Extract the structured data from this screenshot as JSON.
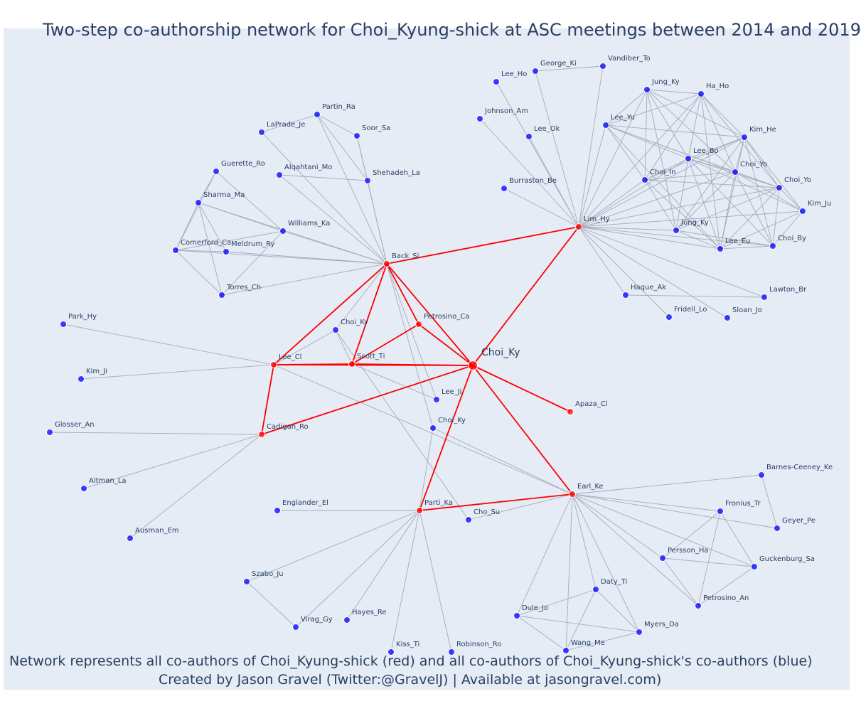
{
  "title": "Two-step co-authorship network for Choi_Kyung-shick at ASC meetings between 2014 and 2019",
  "caption_line1": "Network represents all co-authors of Choi_Kyung-shick (red) and all co-authors of Choi_Kyung-shick's co-authors (blue)",
  "caption_line2": "Created by Jason Gravel (Twitter:@GravelJ) | Available at jasongravel.com)",
  "colors": {
    "plot_background": "#e5ecf6",
    "first_degree": "#ff0000",
    "second_degree": "#0000ff",
    "red_edge": "#ff0000",
    "grey_edge": "#a6abb8",
    "text": "#2a3f5f"
  },
  "nodes": [
    {
      "id": "choi_ky_focal",
      "label": "Choi_Ky",
      "group": "focal"
    },
    {
      "id": "back_si",
      "label": "Back_Si",
      "group": "red"
    },
    {
      "id": "lim_hy",
      "label": "Lim_Hy",
      "group": "red"
    },
    {
      "id": "lee_cl",
      "label": "Lee_Cl",
      "group": "red"
    },
    {
      "id": "scott_ti",
      "label": "Scott_Ti",
      "group": "red"
    },
    {
      "id": "petrosino_ca",
      "label": "Petrosino_Ca",
      "group": "red"
    },
    {
      "id": "cadigan_ro",
      "label": "Cadigan_Ro",
      "group": "red"
    },
    {
      "id": "parti_ka",
      "label": "Parti_Ka",
      "group": "red"
    },
    {
      "id": "earl_ke",
      "label": "Earl_Ke",
      "group": "red"
    },
    {
      "id": "apaza_cl",
      "label": "Apaza_Cl",
      "group": "red"
    },
    {
      "id": "vandiber_to",
      "label": "Vandiber_To",
      "group": "blue"
    },
    {
      "id": "george_ki",
      "label": "George_Ki",
      "group": "blue"
    },
    {
      "id": "lee_ho",
      "label": "Lee_Ho",
      "group": "blue"
    },
    {
      "id": "johnson_am",
      "label": "Johnson_Am",
      "group": "blue"
    },
    {
      "id": "lee_ok",
      "label": "Lee_Ok",
      "group": "blue"
    },
    {
      "id": "burraston_be",
      "label": "Burraston_Be",
      "group": "blue"
    },
    {
      "id": "jung_ky1",
      "label": "Jung_Ky",
      "group": "blue"
    },
    {
      "id": "ha_ho",
      "label": "Ha_Ho",
      "group": "blue"
    },
    {
      "id": "lee_yu",
      "label": "Lee_Yu",
      "group": "blue"
    },
    {
      "id": "kim_he",
      "label": "Kim_He",
      "group": "blue"
    },
    {
      "id": "lee_bo",
      "label": "Lee_Bo",
      "group": "blue"
    },
    {
      "id": "choi_in",
      "label": "Choi_In",
      "group": "blue"
    },
    {
      "id": "choi_yo1",
      "label": "Choi_Yo",
      "group": "blue"
    },
    {
      "id": "choi_yo2",
      "label": "Choi_Yo",
      "group": "blue"
    },
    {
      "id": "kim_ju",
      "label": "Kim_Ju",
      "group": "blue"
    },
    {
      "id": "jung_ky2",
      "label": "Jung_Ky",
      "group": "blue"
    },
    {
      "id": "lee_eu",
      "label": "Lee_Eu",
      "group": "blue"
    },
    {
      "id": "choi_by",
      "label": "Choi_By",
      "group": "blue"
    },
    {
      "id": "haque_ak",
      "label": "Haque_Ak",
      "group": "blue"
    },
    {
      "id": "lawton_br",
      "label": "Lawton_Br",
      "group": "blue"
    },
    {
      "id": "fridell_lo",
      "label": "Fridell_Lo",
      "group": "blue"
    },
    {
      "id": "sloan_jo",
      "label": "Sloan_Jo",
      "group": "blue"
    },
    {
      "id": "partin_ra",
      "label": "Partin_Ra",
      "group": "blue"
    },
    {
      "id": "laprade_je",
      "label": "LaPrade_Je",
      "group": "blue"
    },
    {
      "id": "soor_sa",
      "label": "Soor_Sa",
      "group": "blue"
    },
    {
      "id": "alqahtani_mo",
      "label": "Alqahtani_Mo",
      "group": "blue"
    },
    {
      "id": "shehadeh_la",
      "label": "Shehadeh_La",
      "group": "blue"
    },
    {
      "id": "guerette_ro",
      "label": "Guerette_Ro",
      "group": "blue"
    },
    {
      "id": "sharma_ma",
      "label": "Sharma_Ma",
      "group": "blue"
    },
    {
      "id": "williams_ka",
      "label": "Williams_Ka",
      "group": "blue"
    },
    {
      "id": "comerford_ca",
      "label": "Comerford_Ca",
      "group": "blue"
    },
    {
      "id": "meldrum_ry",
      "label": "Meldrum_Ry",
      "group": "blue"
    },
    {
      "id": "torres_ch",
      "label": "Torres_Ch",
      "group": "blue"
    },
    {
      "id": "park_hy",
      "label": "Park_Hy",
      "group": "blue"
    },
    {
      "id": "kim_ji",
      "label": "Kim_Ji",
      "group": "blue"
    },
    {
      "id": "choi_ky_b1",
      "label": "Choi_Ky",
      "group": "blue"
    },
    {
      "id": "lee_ji",
      "label": "Lee_Ji",
      "group": "blue"
    },
    {
      "id": "choi_ky_b2",
      "label": "Choi_Ky",
      "group": "blue"
    },
    {
      "id": "glosser_an",
      "label": "Glosser_An",
      "group": "blue"
    },
    {
      "id": "altman_la",
      "label": "Altman_La",
      "group": "blue"
    },
    {
      "id": "ausman_em",
      "label": "Ausman_Em",
      "group": "blue"
    },
    {
      "id": "englander_el",
      "label": "Englander_El",
      "group": "blue"
    },
    {
      "id": "cho_su",
      "label": "Cho_Su",
      "group": "blue"
    },
    {
      "id": "szabo_ju",
      "label": "Szabo_Ju",
      "group": "blue"
    },
    {
      "id": "virag_gy",
      "label": "Virag_Gy",
      "group": "blue"
    },
    {
      "id": "hayes_re",
      "label": "Hayes_Re",
      "group": "blue"
    },
    {
      "id": "kiss_ti",
      "label": "Kiss_Ti",
      "group": "blue"
    },
    {
      "id": "robinson_ro",
      "label": "Robinson_Ro",
      "group": "blue"
    },
    {
      "id": "barnes_ceeney_ke",
      "label": "Barnes-Ceeney_Ke",
      "group": "blue"
    },
    {
      "id": "fronius_tr",
      "label": "Fronius_Tr",
      "group": "blue"
    },
    {
      "id": "geyer_pe",
      "label": "Geyer_Pe",
      "group": "blue"
    },
    {
      "id": "persson_ha",
      "label": "Persson_Ha",
      "group": "blue"
    },
    {
      "id": "guckenburg_sa",
      "label": "Guckenburg_Sa",
      "group": "blue"
    },
    {
      "id": "daty_ti",
      "label": "Daty_Ti",
      "group": "blue"
    },
    {
      "id": "petrosino_an",
      "label": "Petrosino_An",
      "group": "blue"
    },
    {
      "id": "dule_jo",
      "label": "Dule_Jo",
      "group": "blue"
    },
    {
      "id": "myers_da",
      "label": "Myers_Da",
      "group": "blue"
    },
    {
      "id": "wang_me",
      "label": "Wang_Me",
      "group": "blue"
    }
  ],
  "red_edges": [
    [
      "choi_ky_focal",
      "back_si"
    ],
    [
      "choi_ky_focal",
      "lim_hy"
    ],
    [
      "choi_ky_focal",
      "scott_ti"
    ],
    [
      "choi_ky_focal",
      "petrosino_ca"
    ],
    [
      "choi_ky_focal",
      "cadigan_ro"
    ],
    [
      "choi_ky_focal",
      "parti_ka"
    ],
    [
      "choi_ky_focal",
      "earl_ke"
    ],
    [
      "choi_ky_focal",
      "apaza_cl"
    ],
    [
      "choi_ky_focal",
      "lee_cl"
    ],
    [
      "back_si",
      "lim_hy"
    ],
    [
      "back_si",
      "lee_cl"
    ],
    [
      "back_si",
      "scott_ti"
    ],
    [
      "back_si",
      "petrosino_ca"
    ],
    [
      "lee_cl",
      "scott_ti"
    ],
    [
      "lee_cl",
      "cadigan_ro"
    ],
    [
      "scott_ti",
      "petrosino_ca"
    ],
    [
      "parti_ka",
      "earl_ke"
    ]
  ],
  "grey_edges": [
    [
      "lim_hy",
      "vandiber_to"
    ],
    [
      "george_ki",
      "vandiber_to"
    ],
    [
      "lim_hy",
      "george_ki"
    ],
    [
      "lim_hy",
      "lee_ho"
    ],
    [
      "lim_hy",
      "johnson_am"
    ],
    [
      "lim_hy",
      "lee_ok"
    ],
    [
      "lim_hy",
      "burraston_be"
    ],
    [
      "lim_hy",
      "jung_ky1"
    ],
    [
      "lim_hy",
      "ha_ho"
    ],
    [
      "lim_hy",
      "lee_yu"
    ],
    [
      "lim_hy",
      "kim_he"
    ],
    [
      "lim_hy",
      "lee_bo"
    ],
    [
      "lim_hy",
      "choi_in"
    ],
    [
      "lim_hy",
      "choi_yo1"
    ],
    [
      "lim_hy",
      "choi_yo2"
    ],
    [
      "lim_hy",
      "kim_ju"
    ],
    [
      "lim_hy",
      "jung_ky2"
    ],
    [
      "lim_hy",
      "lee_eu"
    ],
    [
      "lim_hy",
      "choi_by"
    ],
    [
      "lim_hy",
      "haque_ak"
    ],
    [
      "lim_hy",
      "lawton_br"
    ],
    [
      "lim_hy",
      "fridell_lo"
    ],
    [
      "lim_hy",
      "sloan_jo"
    ],
    [
      "haque_ak",
      "lawton_br"
    ],
    [
      "jung_ky1",
      "ha_ho"
    ],
    [
      "jung_ky1",
      "lee_yu"
    ],
    [
      "jung_ky1",
      "kim_he"
    ],
    [
      "jung_ky1",
      "lee_bo"
    ],
    [
      "jung_ky1",
      "choi_in"
    ],
    [
      "jung_ky1",
      "choi_yo1"
    ],
    [
      "jung_ky1",
      "jung_ky2"
    ],
    [
      "ha_ho",
      "lee_yu"
    ],
    [
      "ha_ho",
      "kim_he"
    ],
    [
      "ha_ho",
      "lee_bo"
    ],
    [
      "ha_ho",
      "choi_in"
    ],
    [
      "ha_ho",
      "choi_yo1"
    ],
    [
      "ha_ho",
      "lee_eu"
    ],
    [
      "ha_ho",
      "choi_yo2"
    ],
    [
      "lee_yu",
      "kim_he"
    ],
    [
      "lee_yu",
      "lee_bo"
    ],
    [
      "lee_yu",
      "choi_yo1"
    ],
    [
      "lee_yu",
      "choi_yo2"
    ],
    [
      "lee_yu",
      "choi_in"
    ],
    [
      "lee_yu",
      "lee_eu"
    ],
    [
      "kim_he",
      "lee_bo"
    ],
    [
      "kim_he",
      "choi_in"
    ],
    [
      "kim_he",
      "choi_yo1"
    ],
    [
      "kim_he",
      "choi_yo2"
    ],
    [
      "kim_he",
      "kim_ju"
    ],
    [
      "kim_he",
      "jung_ky2"
    ],
    [
      "kim_he",
      "lee_eu"
    ],
    [
      "kim_he",
      "choi_by"
    ],
    [
      "lee_bo",
      "choi_in"
    ],
    [
      "lee_bo",
      "choi_yo1"
    ],
    [
      "lee_bo",
      "choi_yo2"
    ],
    [
      "lee_bo",
      "kim_ju"
    ],
    [
      "lee_bo",
      "jung_ky2"
    ],
    [
      "lee_bo",
      "lee_eu"
    ],
    [
      "lee_bo",
      "choi_by"
    ],
    [
      "choi_in",
      "choi_yo1"
    ],
    [
      "choi_in",
      "choi_yo2"
    ],
    [
      "choi_in",
      "jung_ky2"
    ],
    [
      "choi_in",
      "lee_eu"
    ],
    [
      "choi_yo1",
      "choi_yo2"
    ],
    [
      "choi_yo1",
      "kim_ju"
    ],
    [
      "choi_yo1",
      "jung_ky2"
    ],
    [
      "choi_yo1",
      "lee_eu"
    ],
    [
      "choi_yo1",
      "choi_by"
    ],
    [
      "choi_yo2",
      "kim_ju"
    ],
    [
      "choi_yo2",
      "jung_ky2"
    ],
    [
      "choi_yo2",
      "lee_eu"
    ],
    [
      "choi_yo2",
      "choi_by"
    ],
    [
      "kim_ju",
      "lee_eu"
    ],
    [
      "kim_ju",
      "choi_by"
    ],
    [
      "jung_ky2",
      "lee_eu"
    ],
    [
      "jung_ky2",
      "choi_by"
    ],
    [
      "lee_eu",
      "choi_by"
    ],
    [
      "back_si",
      "partin_ra"
    ],
    [
      "back_si",
      "laprade_je"
    ],
    [
      "back_si",
      "soor_sa"
    ],
    [
      "back_si",
      "alqahtani_mo"
    ],
    [
      "back_si",
      "shehadeh_la"
    ],
    [
      "back_si",
      "sharma_ma"
    ],
    [
      "back_si",
      "williams_ka"
    ],
    [
      "back_si",
      "comerford_ca"
    ],
    [
      "back_si",
      "meldrum_ry"
    ],
    [
      "back_si",
      "torres_ch"
    ],
    [
      "back_si",
      "choi_ky_b1"
    ],
    [
      "back_si",
      "choi_ky_b2"
    ],
    [
      "back_si",
      "lee_ji"
    ],
    [
      "partin_ra",
      "laprade_je"
    ],
    [
      "partin_ra",
      "soor_sa"
    ],
    [
      "partin_ra",
      "shehadeh_la"
    ],
    [
      "alqahtani_mo",
      "shehadeh_la"
    ],
    [
      "soor_sa",
      "shehadeh_la"
    ],
    [
      "guerette_ro",
      "sharma_ma"
    ],
    [
      "guerette_ro",
      "williams_ka"
    ],
    [
      "guerette_ro",
      "comerford_ca"
    ],
    [
      "sharma_ma",
      "williams_ka"
    ],
    [
      "sharma_ma",
      "comerford_ca"
    ],
    [
      "sharma_ma",
      "torres_ch"
    ],
    [
      "sharma_ma",
      "meldrum_ry"
    ],
    [
      "williams_ka",
      "comerford_ca"
    ],
    [
      "williams_ka",
      "torres_ch"
    ],
    [
      "comerford_ca",
      "meldrum_ry"
    ],
    [
      "comerford_ca",
      "torres_ch"
    ],
    [
      "lee_cl",
      "park_hy"
    ],
    [
      "lee_cl",
      "kim_ji"
    ],
    [
      "lee_cl",
      "choi_ky_b1"
    ],
    [
      "lee_cl",
      "earl_ke"
    ],
    [
      "scott_ti",
      "choi_ky_b1"
    ],
    [
      "scott_ti",
      "lee_ji"
    ],
    [
      "cadigan_ro",
      "glosser_an"
    ],
    [
      "cadigan_ro",
      "altman_la"
    ],
    [
      "cadigan_ro",
      "ausman_em"
    ],
    [
      "parti_ka",
      "choi_ky_b2"
    ],
    [
      "parti_ka",
      "englander_el"
    ],
    [
      "parti_ka",
      "szabo_ju"
    ],
    [
      "parti_ka",
      "virag_gy"
    ],
    [
      "parti_ka",
      "hayes_re"
    ],
    [
      "parti_ka",
      "kiss_ti"
    ],
    [
      "parti_ka",
      "robinson_ro"
    ],
    [
      "szabo_ju",
      "virag_gy"
    ],
    [
      "earl_ke",
      "choi_ky_b2"
    ],
    [
      "earl_ke",
      "cho_su"
    ],
    [
      "choi_ky_b1",
      "cho_su"
    ],
    [
      "earl_ke",
      "barnes_ceeney_ke"
    ],
    [
      "earl_ke",
      "fronius_tr"
    ],
    [
      "earl_ke",
      "geyer_pe"
    ],
    [
      "earl_ke",
      "persson_ha"
    ],
    [
      "earl_ke",
      "guckenburg_sa"
    ],
    [
      "earl_ke",
      "daty_ti"
    ],
    [
      "earl_ke",
      "petrosino_an"
    ],
    [
      "earl_ke",
      "dule_jo"
    ],
    [
      "earl_ke",
      "myers_da"
    ],
    [
      "earl_ke",
      "wang_me"
    ],
    [
      "barnes_ceeney_ke",
      "geyer_pe"
    ],
    [
      "fronius_tr",
      "persson_ha"
    ],
    [
      "fronius_tr",
      "guckenburg_sa"
    ],
    [
      "fronius_tr",
      "petrosino_an"
    ],
    [
      "persson_ha",
      "guckenburg_sa"
    ],
    [
      "persson_ha",
      "petrosino_an"
    ],
    [
      "guckenburg_sa",
      "petrosino_an"
    ],
    [
      "daty_ti",
      "dule_jo"
    ],
    [
      "daty_ti",
      "myers_da"
    ],
    [
      "daty_ti",
      "wang_me"
    ],
    [
      "dule_jo",
      "myers_da"
    ],
    [
      "dule_jo",
      "wang_me"
    ],
    [
      "myers_da",
      "wang_me"
    ]
  ]
}
